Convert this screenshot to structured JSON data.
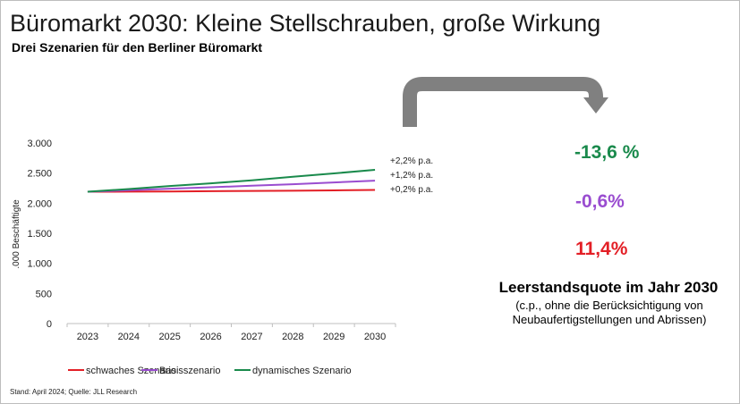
{
  "slide": {
    "title": "Büromarkt 2030: Kleine Stellschrauben, große Wirkung",
    "subtitle": "Drei Szenarien für den Berliner Büromarkt",
    "source": "Stand: April 2024; Quelle: JLL Research"
  },
  "kpis": [
    {
      "value": "-13,6 %",
      "color": "#1a8a4c"
    },
    {
      "value": "-0,6%",
      "color": "#9a4dd0"
    },
    {
      "value": "11,4%",
      "color": "#e31f26"
    }
  ],
  "caption": {
    "title": "Leerstandsquote im Jahr 2030",
    "note": "(c.p., ohne die Berücksichtigung von Neubaufertigstellungen und Abrissen)"
  },
  "colors": {
    "arrow": "#808080",
    "axis": "#bfbfbf"
  },
  "chart_data": {
    "type": "line",
    "title": "",
    "xlabel": "",
    "ylabel": ".000 Beschäftigte",
    "x": [
      2023,
      2024,
      2025,
      2026,
      2027,
      2028,
      2029,
      2030
    ],
    "ylim": [
      0,
      3000
    ],
    "yticks": [
      0,
      500,
      1000,
      1500,
      2000,
      2500,
      3000
    ],
    "ytick_labels": [
      "0",
      "500",
      "1.000",
      "1.500",
      "2.000",
      "2.500",
      "3.000"
    ],
    "grid": false,
    "legend_position": "bottom",
    "series": [
      {
        "name": "schwaches Szenario",
        "color": "#e31f26",
        "values": [
          2190,
          2192,
          2195,
          2200,
          2203,
          2207,
          2213,
          2220
        ],
        "end_label": "+0,2% p.a."
      },
      {
        "name": "Basisszenario",
        "color": "#9a4dd0",
        "values": [
          2190,
          2215,
          2240,
          2265,
          2290,
          2315,
          2345,
          2375
        ],
        "end_label": "+1,2% p.a."
      },
      {
        "name": "dynamisches Szenario",
        "color": "#1a8a4c",
        "values": [
          2190,
          2235,
          2285,
          2330,
          2380,
          2440,
          2495,
          2555
        ],
        "end_label": "+2,2% p.a."
      }
    ]
  }
}
